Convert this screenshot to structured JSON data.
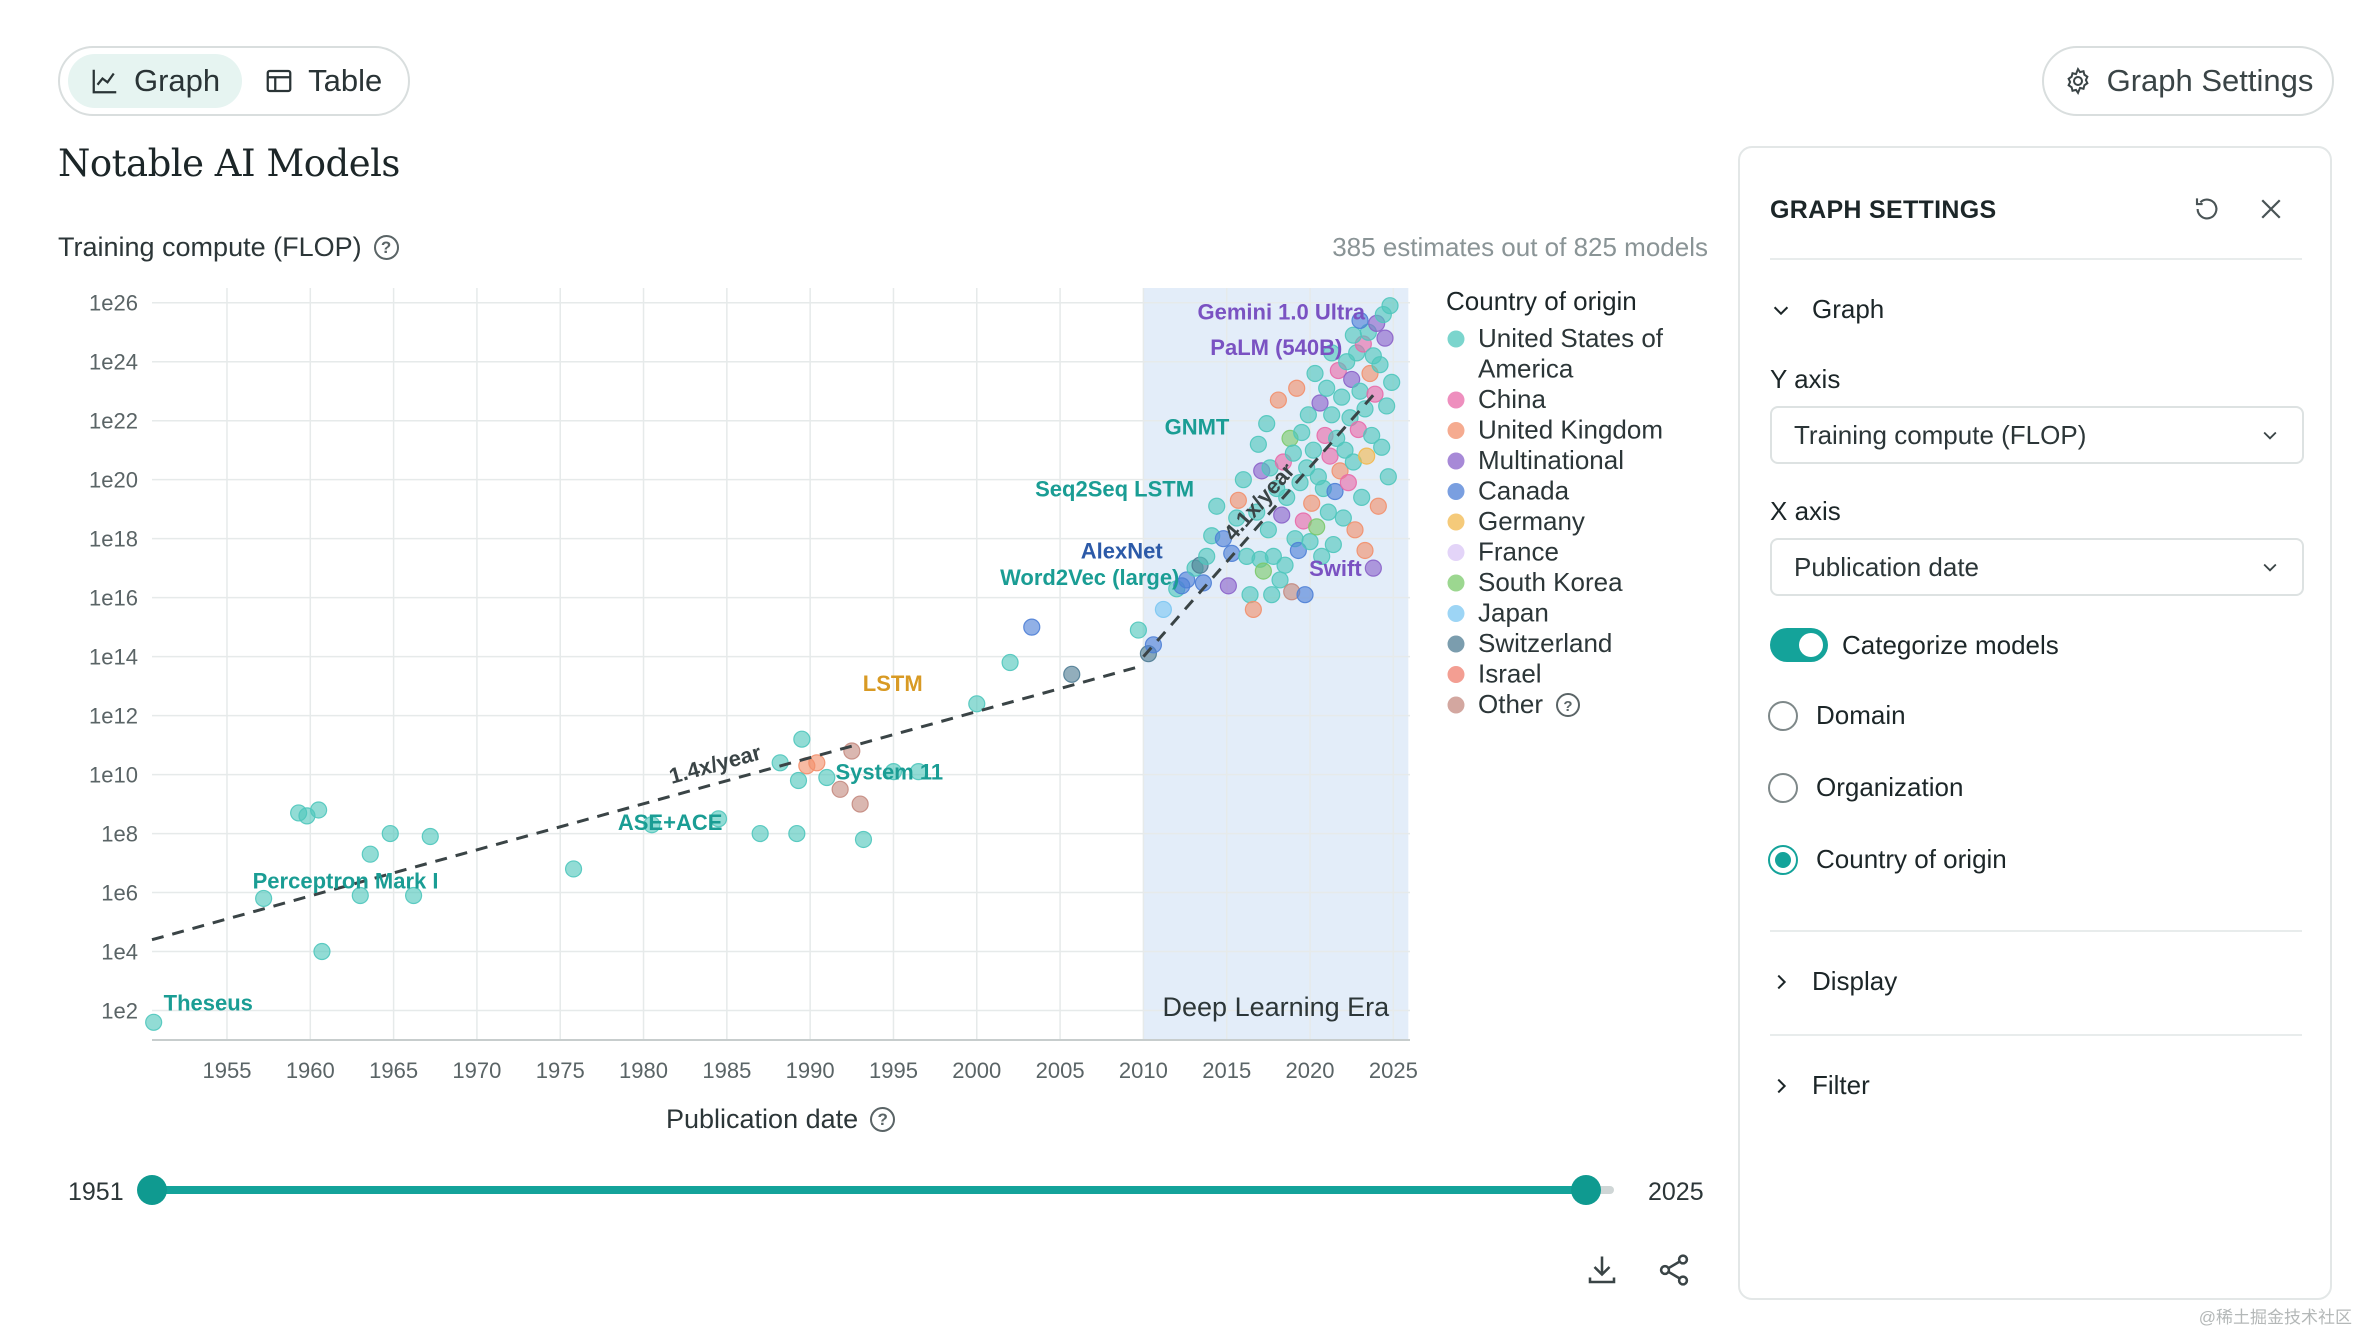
{
  "view_toggle": {
    "graph_label": "Graph",
    "table_label": "Table"
  },
  "header": {
    "settings_button": "Graph Settings",
    "title": "Notable AI Models"
  },
  "chart_header": {
    "y_title": "Training compute (FLOP)",
    "estimates": "385 estimates out of 825 models"
  },
  "x_title": "Publication date",
  "slider": {
    "min_label": "1951",
    "max_label": "2025",
    "min_value": 1951,
    "max_value": 2025
  },
  "legend": {
    "title": "Country of origin",
    "items": [
      {
        "label": "United States of",
        "label2": "America",
        "color": "#4fc7bc"
      },
      {
        "label": "China",
        "color": "#e86aa8"
      },
      {
        "label": "United Kingdom",
        "color": "#f28f6b"
      },
      {
        "label": "Multinational",
        "color": "#8a62c9"
      },
      {
        "label": "Canada",
        "color": "#4e7fd6"
      },
      {
        "label": "Germany",
        "color": "#f2b84d"
      },
      {
        "label": "France",
        "color": "#d9c6f5"
      },
      {
        "label": "South Korea",
        "color": "#7bc96b"
      },
      {
        "label": "Japan",
        "color": "#7cc7f2"
      },
      {
        "label": "Switzerland",
        "color": "#4f7c93"
      },
      {
        "label": "Israel",
        "color": "#ef7d6e"
      },
      {
        "label": "Other",
        "color": "#c48a80"
      }
    ]
  },
  "chart_data": {
    "type": "scatter",
    "xlabel": "Publication date",
    "ylabel": "Training compute (FLOP)",
    "y_scale": "log10",
    "xlim": [
      1950.5,
      2026
    ],
    "ylim_exp": [
      1,
      26.5
    ],
    "x_ticks": [
      "1955",
      "1960",
      "1965",
      "1970",
      "1975",
      "1980",
      "1985",
      "1990",
      "1995",
      "2000",
      "2005",
      "2010",
      "2015",
      "2020",
      "2025"
    ],
    "y_ticks": [
      "1e2",
      "1e4",
      "1e6",
      "1e8",
      "1e10",
      "1e12",
      "1e14",
      "1e16",
      "1e18",
      "1e20",
      "1e22",
      "1e24",
      "1e26"
    ],
    "shaded_region": {
      "from": 2010,
      "to": 2025,
      "label": "Deep Learning Era"
    },
    "trends": [
      {
        "label": "1.4x/year",
        "from": [
          1950.5,
          4.4
        ],
        "to": [
          2010,
          13.7
        ]
      },
      {
        "label": "4.1x/year",
        "from": [
          2010,
          14.0
        ],
        "to": [
          2024,
          23.0
        ]
      }
    ],
    "labeled_models": [
      {
        "name": "Theseus",
        "x": 1950.6,
        "y": 1.6,
        "color": "#1a9d94"
      },
      {
        "name": "Perceptron Mark I",
        "x": 1957.5,
        "y": 5.8,
        "color": "#1a9d94"
      },
      {
        "name": "ASE+ACE",
        "x": 1980.5,
        "y": 8.4,
        "color": "#1a9d94"
      },
      {
        "name": "System 11",
        "x": 1992,
        "y": 10.1,
        "color": "#1a9d94"
      },
      {
        "name": "LSTM",
        "x": 1997,
        "y": 13.1,
        "color": "#d89a24"
      },
      {
        "name": "Word2Vec (large)",
        "x": 2013,
        "y": 16.7,
        "color": "#1a9d94"
      },
      {
        "name": "AlexNet",
        "x": 2012,
        "y": 17.6,
        "color": "#2c5aa8"
      },
      {
        "name": "Seq2Seq LSTM",
        "x": 2014,
        "y": 19.7,
        "color": "#1a9d94"
      },
      {
        "name": "GNMT",
        "x": 2016,
        "y": 21.8,
        "color": "#1a9d94"
      },
      {
        "name": "PaLM (540B)",
        "x": 2022.3,
        "y": 24.5,
        "color": "#7a52c2"
      },
      {
        "name": "Gemini 1.0 Ultra",
        "x": 2023.9,
        "y": 25.7,
        "color": "#7a52c2"
      },
      {
        "name": "Swift",
        "x": 2023.7,
        "y": 17.0,
        "color": "#7a52c2"
      }
    ],
    "points": [
      [
        1950.6,
        1.6,
        0
      ],
      [
        1957.2,
        5.8,
        0
      ],
      [
        1959.3,
        8.7,
        0
      ],
      [
        1959.8,
        8.6,
        0
      ],
      [
        1960.5,
        8.8,
        0
      ],
      [
        1960.7,
        4.0,
        0
      ],
      [
        1963,
        5.9,
        0
      ],
      [
        1963.6,
        7.3,
        0
      ],
      [
        1964.8,
        8.0,
        0
      ],
      [
        1966.2,
        5.9,
        0
      ],
      [
        1967.2,
        7.9,
        0
      ],
      [
        1975.8,
        6.8,
        0
      ],
      [
        1980.5,
        8.3,
        0
      ],
      [
        1984.5,
        8.5,
        0
      ],
      [
        1987,
        8.0,
        0
      ],
      [
        1988.2,
        10.4,
        0
      ],
      [
        1989.2,
        8.0,
        0
      ],
      [
        1989.8,
        10.3,
        2
      ],
      [
        1989.5,
        11.2,
        0
      ],
      [
        1989.3,
        9.8,
        0
      ],
      [
        1990.4,
        10.4,
        2
      ],
      [
        1991,
        9.9,
        0
      ],
      [
        1991.8,
        9.5,
        11
      ],
      [
        1992.5,
        10.8,
        11
      ],
      [
        1993,
        9.0,
        11
      ],
      [
        1993.2,
        7.8,
        0
      ],
      [
        1995,
        10.1,
        0
      ],
      [
        1996.5,
        10.1,
        0
      ],
      [
        2000,
        12.4,
        0
      ],
      [
        2002,
        13.8,
        0
      ],
      [
        2003.3,
        15.0,
        4
      ],
      [
        2005.7,
        13.4,
        9
      ],
      [
        2009.7,
        14.9,
        0
      ],
      [
        2010.3,
        14.1,
        9
      ],
      [
        2010.6,
        14.4,
        4
      ],
      [
        2011.2,
        15.6,
        8
      ],
      [
        2012,
        16.3,
        0
      ],
      [
        2012.6,
        16.6,
        4
      ],
      [
        2012.3,
        16.4,
        4
      ],
      [
        2013.1,
        17.0,
        0
      ],
      [
        2013.4,
        17.1,
        9
      ],
      [
        2013.6,
        16.5,
        4
      ],
      [
        2013.8,
        17.4,
        0
      ],
      [
        2014.1,
        18.1,
        0
      ],
      [
        2014.4,
        19.1,
        0
      ],
      [
        2014.8,
        18.0,
        4
      ],
      [
        2015.1,
        16.4,
        3
      ],
      [
        2015.3,
        17.5,
        4
      ],
      [
        2015.6,
        18.7,
        0
      ],
      [
        2015.7,
        19.3,
        2
      ],
      [
        2016.0,
        20.0,
        0
      ],
      [
        2016.2,
        17.4,
        0
      ],
      [
        2016.4,
        16.1,
        0
      ],
      [
        2016.6,
        15.6,
        2
      ],
      [
        2016.8,
        18.9,
        0
      ],
      [
        2016.9,
        21.2,
        0
      ],
      [
        2017.0,
        17.3,
        0
      ],
      [
        2017.1,
        20.3,
        3
      ],
      [
        2017.2,
        16.9,
        7
      ],
      [
        2017.4,
        21.9,
        0
      ],
      [
        2017.5,
        18.3,
        0
      ],
      [
        2017.6,
        20.4,
        0
      ],
      [
        2017.7,
        16.1,
        0
      ],
      [
        2017.8,
        17.4,
        0
      ],
      [
        2018.0,
        19.7,
        0
      ],
      [
        2018.1,
        22.7,
        2
      ],
      [
        2018.2,
        16.6,
        0
      ],
      [
        2018.3,
        18.8,
        3
      ],
      [
        2018.4,
        20.6,
        1
      ],
      [
        2018.5,
        17.1,
        0
      ],
      [
        2018.6,
        19.4,
        0
      ],
      [
        2018.8,
        21.4,
        7
      ],
      [
        2018.9,
        16.2,
        11
      ],
      [
        2019.0,
        20.9,
        0
      ],
      [
        2019.1,
        18.0,
        0
      ],
      [
        2019.2,
        23.1,
        2
      ],
      [
        2019.3,
        17.6,
        4
      ],
      [
        2019.4,
        19.9,
        0
      ],
      [
        2019.5,
        21.6,
        0
      ],
      [
        2019.6,
        18.6,
        1
      ],
      [
        2019.7,
        16.1,
        4
      ],
      [
        2019.8,
        20.4,
        0
      ],
      [
        2019.9,
        22.2,
        0
      ],
      [
        2020.0,
        17.9,
        0
      ],
      [
        2020.1,
        19.2,
        2
      ],
      [
        2020.2,
        21.0,
        0
      ],
      [
        2020.3,
        23.6,
        0
      ],
      [
        2020.4,
        18.4,
        7
      ],
      [
        2020.5,
        20.1,
        0
      ],
      [
        2020.6,
        22.6,
        3
      ],
      [
        2020.7,
        17.4,
        0
      ],
      [
        2020.8,
        19.7,
        0
      ],
      [
        2020.9,
        21.5,
        1
      ],
      [
        2021.0,
        23.1,
        0
      ],
      [
        2021.1,
        18.9,
        0
      ],
      [
        2021.2,
        20.8,
        1
      ],
      [
        2021.3,
        22.2,
        0
      ],
      [
        2021.4,
        17.8,
        0
      ],
      [
        2021.5,
        19.6,
        4
      ],
      [
        2021.6,
        21.4,
        0
      ],
      [
        2021.7,
        23.7,
        1
      ],
      [
        2021.8,
        20.3,
        2
      ],
      [
        2021.9,
        22.8,
        0
      ],
      [
        2022.0,
        18.7,
        0
      ],
      [
        2022.1,
        21.0,
        0
      ],
      [
        2022.2,
        24.0,
        0
      ],
      [
        2022.3,
        19.9,
        1
      ],
      [
        2022.4,
        22.1,
        0
      ],
      [
        2022.5,
        23.4,
        3
      ],
      [
        2022.6,
        20.6,
        0
      ],
      [
        2022.7,
        18.3,
        2
      ],
      [
        2022.8,
        24.3,
        0
      ],
      [
        2022.9,
        21.7,
        1
      ],
      [
        2023.0,
        23.0,
        0
      ],
      [
        2023.1,
        19.4,
        0
      ],
      [
        2023.2,
        24.6,
        1
      ],
      [
        2023.3,
        22.4,
        0
      ],
      [
        2023.4,
        20.8,
        5
      ],
      [
        2023.5,
        25.0,
        0
      ],
      [
        2023.6,
        23.6,
        2
      ],
      [
        2023.7,
        21.5,
        0
      ],
      [
        2023.8,
        24.2,
        0
      ],
      [
        2023.9,
        22.9,
        1
      ],
      [
        2024.0,
        25.3,
        3
      ],
      [
        2024.1,
        19.1,
        2
      ],
      [
        2024.2,
        23.9,
        0
      ],
      [
        2024.3,
        21.1,
        0
      ],
      [
        2024.4,
        25.6,
        0
      ],
      [
        2024.5,
        24.8,
        3
      ],
      [
        2024.6,
        22.5,
        0
      ],
      [
        2024.7,
        20.1,
        0
      ],
      [
        2024.8,
        25.9,
        0
      ],
      [
        2024.9,
        23.3,
        0
      ],
      [
        2022.6,
        24.9,
        0
      ],
      [
        2023.0,
        25.4,
        4
      ],
      [
        2021.3,
        24.3,
        0
      ],
      [
        2023.8,
        17.0,
        3
      ],
      [
        2023.3,
        17.6,
        2
      ]
    ]
  },
  "panel": {
    "title": "GRAPH SETTINGS",
    "graph_section": "Graph",
    "y_axis_label": "Y axis",
    "y_axis_value": "Training compute (FLOP)",
    "x_axis_label": "X axis",
    "x_axis_value": "Publication date",
    "categorize_label": "Categorize models",
    "radio_domain": "Domain",
    "radio_organization": "Organization",
    "radio_country": "Country of origin",
    "display_section": "Display",
    "filter_section": "Filter"
  },
  "watermark": "@稀土掘金技术社区"
}
